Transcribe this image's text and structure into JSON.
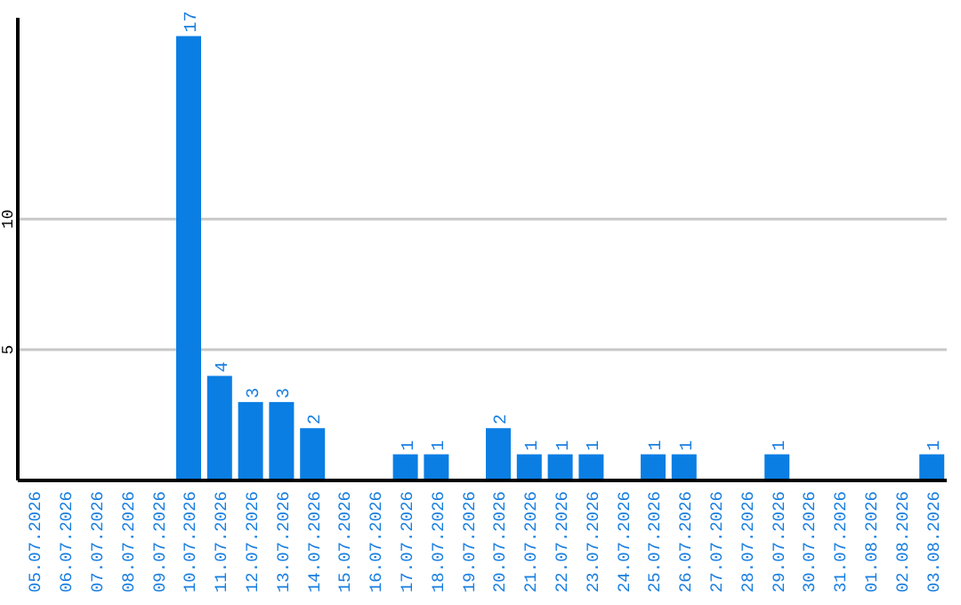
{
  "chart_data": {
    "type": "bar",
    "categories": [
      "05.07.2026",
      "06.07.2026",
      "07.07.2026",
      "08.07.2026",
      "09.07.2026",
      "10.07.2026",
      "11.07.2026",
      "12.07.2026",
      "13.07.2026",
      "14.07.2026",
      "15.07.2026",
      "16.07.2026",
      "17.07.2026",
      "18.07.2026",
      "19.07.2026",
      "20.07.2026",
      "21.07.2026",
      "22.07.2026",
      "23.07.2026",
      "24.07.2026",
      "25.07.2026",
      "26.07.2026",
      "27.07.2026",
      "28.07.2026",
      "29.07.2026",
      "30.07.2026",
      "31.07.2026",
      "01.08.2026",
      "02.08.2026",
      "03.08.2026"
    ],
    "values": [
      0,
      0,
      0,
      0,
      0,
      17,
      4,
      3,
      3,
      2,
      0,
      0,
      1,
      1,
      0,
      2,
      1,
      1,
      1,
      0,
      1,
      1,
      0,
      0,
      1,
      0,
      0,
      0,
      0,
      1
    ],
    "value_labels": [
      null,
      null,
      null,
      null,
      null,
      "17",
      "4",
      "3",
      "3",
      "2",
      null,
      null,
      "1",
      "1",
      null,
      "2",
      "1",
      "1",
      "1",
      null,
      "1",
      "1",
      null,
      null,
      "1",
      null,
      null,
      null,
      null,
      "1"
    ],
    "color": "#0a7ee3",
    "ylim": [
      0,
      17.7
    ],
    "yticks": [
      5,
      10
    ],
    "grid": "y"
  }
}
